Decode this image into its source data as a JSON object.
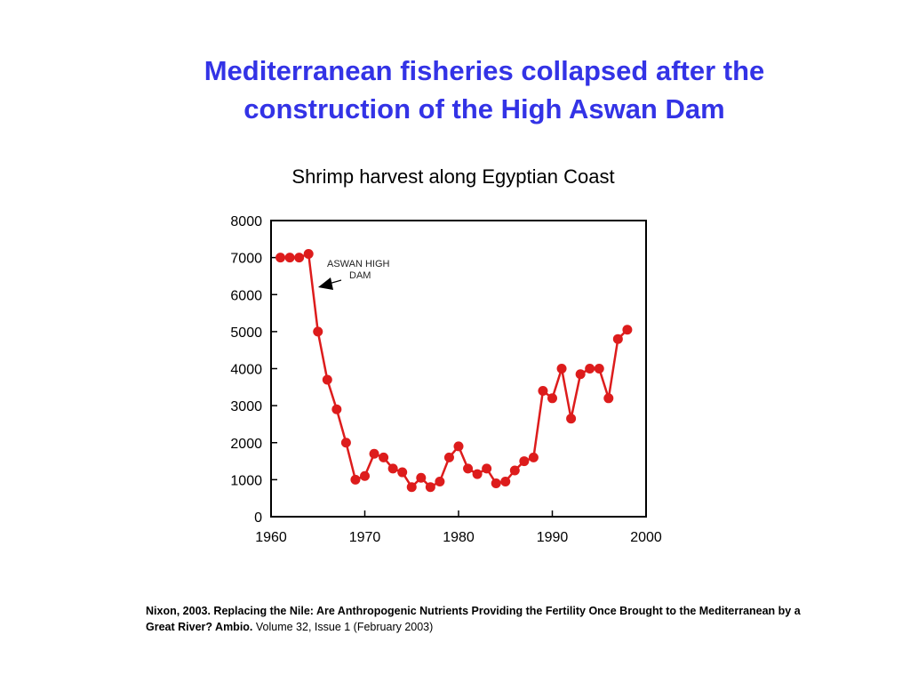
{
  "slide": {
    "title_line1": "Mediterranean fisheries collapsed after the",
    "title_line2": "construction of the High Aswan Dam",
    "title_color": "#3333e6"
  },
  "chart_data": {
    "type": "line",
    "title": "Shrimp harvest along Egyptian Coast",
    "xlabel": "",
    "ylabel": "",
    "xlim": [
      1960,
      2000
    ],
    "ylim": [
      0,
      8000
    ],
    "xticks": [
      1960,
      1970,
      1980,
      1990,
      2000
    ],
    "yticks": [
      0,
      1000,
      2000,
      3000,
      4000,
      5000,
      6000,
      7000,
      8000
    ],
    "grid": false,
    "line_color": "#dd1c1c",
    "series": [
      {
        "name": "Shrimp harvest",
        "x": [
          1961,
          1962,
          1963,
          1964,
          1965,
          1966,
          1967,
          1968,
          1969,
          1970,
          1971,
          1972,
          1973,
          1974,
          1975,
          1976,
          1977,
          1978,
          1979,
          1980,
          1981,
          1982,
          1983,
          1984,
          1985,
          1986,
          1987,
          1988,
          1989,
          1990,
          1991,
          1992,
          1993,
          1994,
          1995,
          1996,
          1997,
          1998
        ],
        "values": [
          7000,
          7000,
          7000,
          7100,
          5000,
          3700,
          2900,
          2000,
          1000,
          1100,
          1700,
          1600,
          1300,
          1200,
          800,
          1050,
          800,
          950,
          1600,
          1900,
          1300,
          1150,
          1300,
          900,
          950,
          1250,
          1500,
          1600,
          3400,
          3200,
          4000,
          2650,
          3850,
          4000,
          4000,
          3200,
          4800,
          5050
        ]
      }
    ],
    "annotation": {
      "line1": "ASWAN  HIGH",
      "line2": "DAM",
      "points_to_year": 1964
    }
  },
  "citation": {
    "bold_text": "Nixon, 2003. Replacing the Nile: Are Anthropogenic Nutrients Providing the Fertility Once Brought to the Mediterranean by a Great River? Ambio.",
    "normal_text": " Volume 32, Issue 1 (February 2003)"
  }
}
